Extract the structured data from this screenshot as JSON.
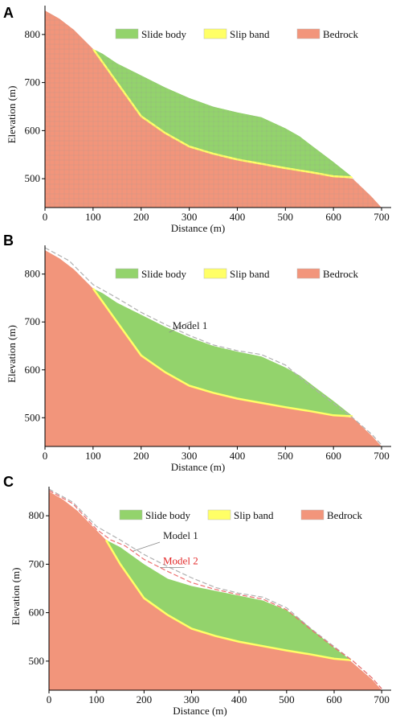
{
  "colors": {
    "slide": "#93d36c",
    "slip": "#ffff66",
    "bedrock": "#f2957b",
    "axis": "#000000",
    "model1_line": "#b0b0b0",
    "model2_line": "#ee6f6f",
    "model2_text": "#e32a2a"
  },
  "chart_data": [
    {
      "id": "A",
      "type": "area",
      "panel_letter": "A",
      "xlabel": "Distance (m)",
      "ylabel": "Elevation (m)",
      "xlim": [
        0,
        720
      ],
      "ylim": [
        440,
        860
      ],
      "xticks": [
        0,
        100,
        200,
        300,
        400,
        500,
        600,
        700
      ],
      "yticks": [
        500,
        600,
        700,
        800
      ],
      "mesh": true,
      "legend": {
        "placement": "top-right",
        "items": [
          "Slide body",
          "Slip band",
          "Bedrock"
        ]
      },
      "series": [
        {
          "name": "Bedrock",
          "x": [
            0,
            30,
            60,
            100,
            150,
            200,
            250,
            300,
            350,
            400,
            450,
            500,
            550,
            600,
            640,
            680,
            700
          ],
          "y": [
            850,
            833,
            810,
            770,
            700,
            630,
            595,
            567,
            552,
            540,
            531,
            522,
            514,
            505,
            500,
            462,
            440
          ]
        },
        {
          "name": "Slide body",
          "x": [
            100,
            120,
            150,
            200,
            250,
            300,
            350,
            400,
            450,
            500,
            530,
            560,
            600,
            640
          ],
          "y": [
            770,
            760,
            740,
            715,
            690,
            668,
            650,
            638,
            628,
            605,
            588,
            565,
            535,
            503
          ]
        },
        {
          "name": "Slip band",
          "x": [
            100,
            150,
            200,
            250,
            300,
            350,
            400,
            450,
            500,
            550,
            600,
            640
          ],
          "y": [
            770,
            700,
            630,
            595,
            567,
            552,
            540,
            531,
            522,
            514,
            505,
            503
          ]
        }
      ],
      "annotations": []
    },
    {
      "id": "B",
      "type": "area",
      "panel_letter": "B",
      "xlabel": "Distance (m)",
      "ylabel": "Elevation (m)",
      "xlim": [
        0,
        720
      ],
      "ylim": [
        440,
        860
      ],
      "xticks": [
        0,
        100,
        200,
        300,
        400,
        500,
        600,
        700
      ],
      "yticks": [
        500,
        600,
        700,
        800
      ],
      "mesh": false,
      "legend": {
        "placement": "top-right",
        "items": [
          "Slide body",
          "Slip band",
          "Bedrock"
        ]
      },
      "series": [
        {
          "name": "Bedrock",
          "x": [
            0,
            30,
            60,
            100,
            150,
            200,
            250,
            300,
            350,
            400,
            450,
            500,
            550,
            600,
            640,
            680,
            700
          ],
          "y": [
            850,
            833,
            810,
            770,
            700,
            630,
            595,
            567,
            552,
            540,
            531,
            522,
            514,
            505,
            500,
            462,
            440
          ]
        },
        {
          "name": "Slide body",
          "x": [
            100,
            120,
            150,
            200,
            250,
            300,
            350,
            400,
            450,
            500,
            530,
            560,
            600,
            640
          ],
          "y": [
            770,
            760,
            740,
            715,
            690,
            668,
            650,
            638,
            628,
            605,
            588,
            565,
            535,
            503
          ]
        },
        {
          "name": "Slip band",
          "x": [
            100,
            150,
            200,
            250,
            300,
            350,
            400,
            450,
            500,
            550,
            600,
            640
          ],
          "y": [
            770,
            700,
            630,
            595,
            567,
            552,
            540,
            531,
            522,
            514,
            505,
            503
          ]
        },
        {
          "name": "Model 1",
          "x": [
            0,
            50,
            100,
            150,
            200,
            250,
            300,
            350,
            400,
            450,
            500,
            550,
            600,
            640,
            680,
            700
          ],
          "y": [
            855,
            828,
            778,
            750,
            720,
            695,
            672,
            652,
            640,
            632,
            610,
            568,
            530,
            500,
            465,
            443
          ]
        }
      ],
      "annotations": [
        {
          "text": "Model 1",
          "color": "#222222",
          "x": 305,
          "y": 702,
          "tx": 265,
          "ty": 685
        }
      ]
    },
    {
      "id": "C",
      "type": "area",
      "panel_letter": "C",
      "xlabel": "Distance (m)",
      "ylabel": "Elevation (m)",
      "xlim": [
        0,
        720
      ],
      "ylim": [
        440,
        860
      ],
      "xticks": [
        0,
        100,
        200,
        300,
        400,
        500,
        600,
        700
      ],
      "yticks": [
        500,
        600,
        700,
        800
      ],
      "mesh": false,
      "legend": {
        "placement": "top-right",
        "items": [
          "Slide body",
          "Slip band",
          "Bedrock"
        ]
      },
      "series": [
        {
          "name": "Bedrock",
          "x": [
            0,
            30,
            60,
            100,
            120,
            150,
            200,
            250,
            300,
            350,
            400,
            450,
            500,
            550,
            600,
            635,
            680,
            700
          ],
          "y": [
            850,
            833,
            810,
            770,
            750,
            700,
            630,
            595,
            567,
            552,
            540,
            531,
            522,
            514,
            505,
            500,
            462,
            440
          ]
        },
        {
          "name": "Slide body",
          "x": [
            120,
            150,
            200,
            250,
            300,
            350,
            400,
            450,
            500,
            530,
            560,
            600,
            635
          ],
          "y": [
            750,
            735,
            700,
            670,
            655,
            645,
            635,
            625,
            605,
            585,
            560,
            528,
            502
          ]
        },
        {
          "name": "Slip band",
          "x": [
            120,
            150,
            200,
            250,
            300,
            350,
            400,
            450,
            500,
            550,
            600,
            635
          ],
          "y": [
            750,
            700,
            630,
            595,
            567,
            552,
            540,
            531,
            522,
            514,
            505,
            502
          ]
        },
        {
          "name": "Model 1",
          "x": [
            0,
            50,
            100,
            150,
            200,
            250,
            300,
            350,
            400,
            450,
            500,
            550,
            600,
            640,
            680,
            700
          ],
          "y": [
            855,
            828,
            778,
            750,
            720,
            695,
            672,
            652,
            640,
            632,
            610,
            568,
            530,
            500,
            465,
            443
          ]
        },
        {
          "name": "Model 2",
          "x": [
            0,
            50,
            100,
            130,
            160,
            200,
            250,
            300,
            350,
            400,
            450,
            500,
            550,
            600,
            640,
            680,
            700
          ],
          "y": [
            852,
            825,
            772,
            750,
            738,
            710,
            685,
            662,
            648,
            637,
            628,
            606,
            566,
            528,
            500,
            465,
            443
          ]
        }
      ],
      "annotations": [
        {
          "text": "Model 1",
          "color": "#222222",
          "x": 177,
          "y": 727,
          "tx": 240,
          "ty": 752
        },
        {
          "text": "Model 2",
          "color": "#e32a2a",
          "x": 285,
          "y": 693,
          "tx": 240,
          "ty": 700
        }
      ]
    }
  ]
}
